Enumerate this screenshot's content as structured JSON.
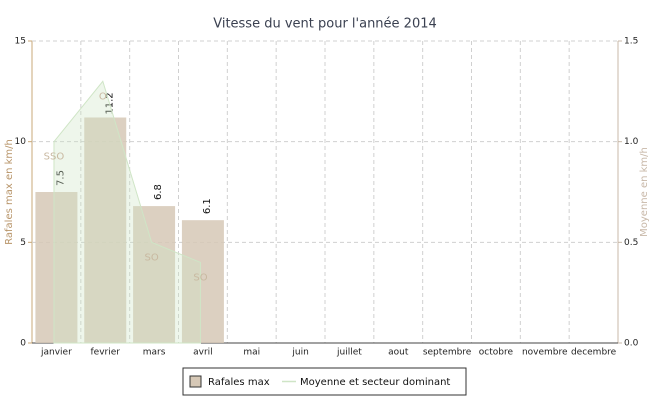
{
  "chart_data": {
    "type": "bar",
    "title": "Vitesse du vent pour l'année 2014",
    "categories": [
      "janvier",
      "fevrier",
      "mars",
      "avril",
      "mai",
      "juin",
      "juillet",
      "aout",
      "septembre",
      "octobre",
      "novembre",
      "decembre"
    ],
    "series": [
      {
        "name": "Rafales max",
        "color": "#d6c8b6",
        "values": [
          7.5,
          11.2,
          6.8,
          6.1,
          null,
          null,
          null,
          null,
          null,
          null,
          null,
          null
        ]
      },
      {
        "name": "Moyenne et secteur dominant",
        "type": "area",
        "axis": "y2",
        "color": "#cfe5c6",
        "values": [
          1.0,
          1.3,
          0.5,
          0.4,
          null,
          null,
          null,
          null,
          null,
          null,
          null,
          null
        ],
        "point_labels": [
          "SSO",
          "O",
          "SO",
          "SO",
          null,
          null,
          null,
          null,
          null,
          null,
          null,
          null
        ]
      }
    ],
    "ylabel": "Rafales max en km/h",
    "y2label": "Moyenne en km/h",
    "ylim": [
      0,
      15
    ],
    "yticks": [
      0,
      5,
      10,
      15
    ],
    "y2lim": [
      0,
      1.5
    ],
    "y2ticks": [
      {
        "value": 0,
        "label": "0.0"
      },
      {
        "value": 0.5,
        "label": "0.5"
      },
      {
        "value": 1.0,
        "label": "1.0"
      },
      {
        "value": 1.5,
        "label": "1.5"
      }
    ],
    "grid": true
  }
}
